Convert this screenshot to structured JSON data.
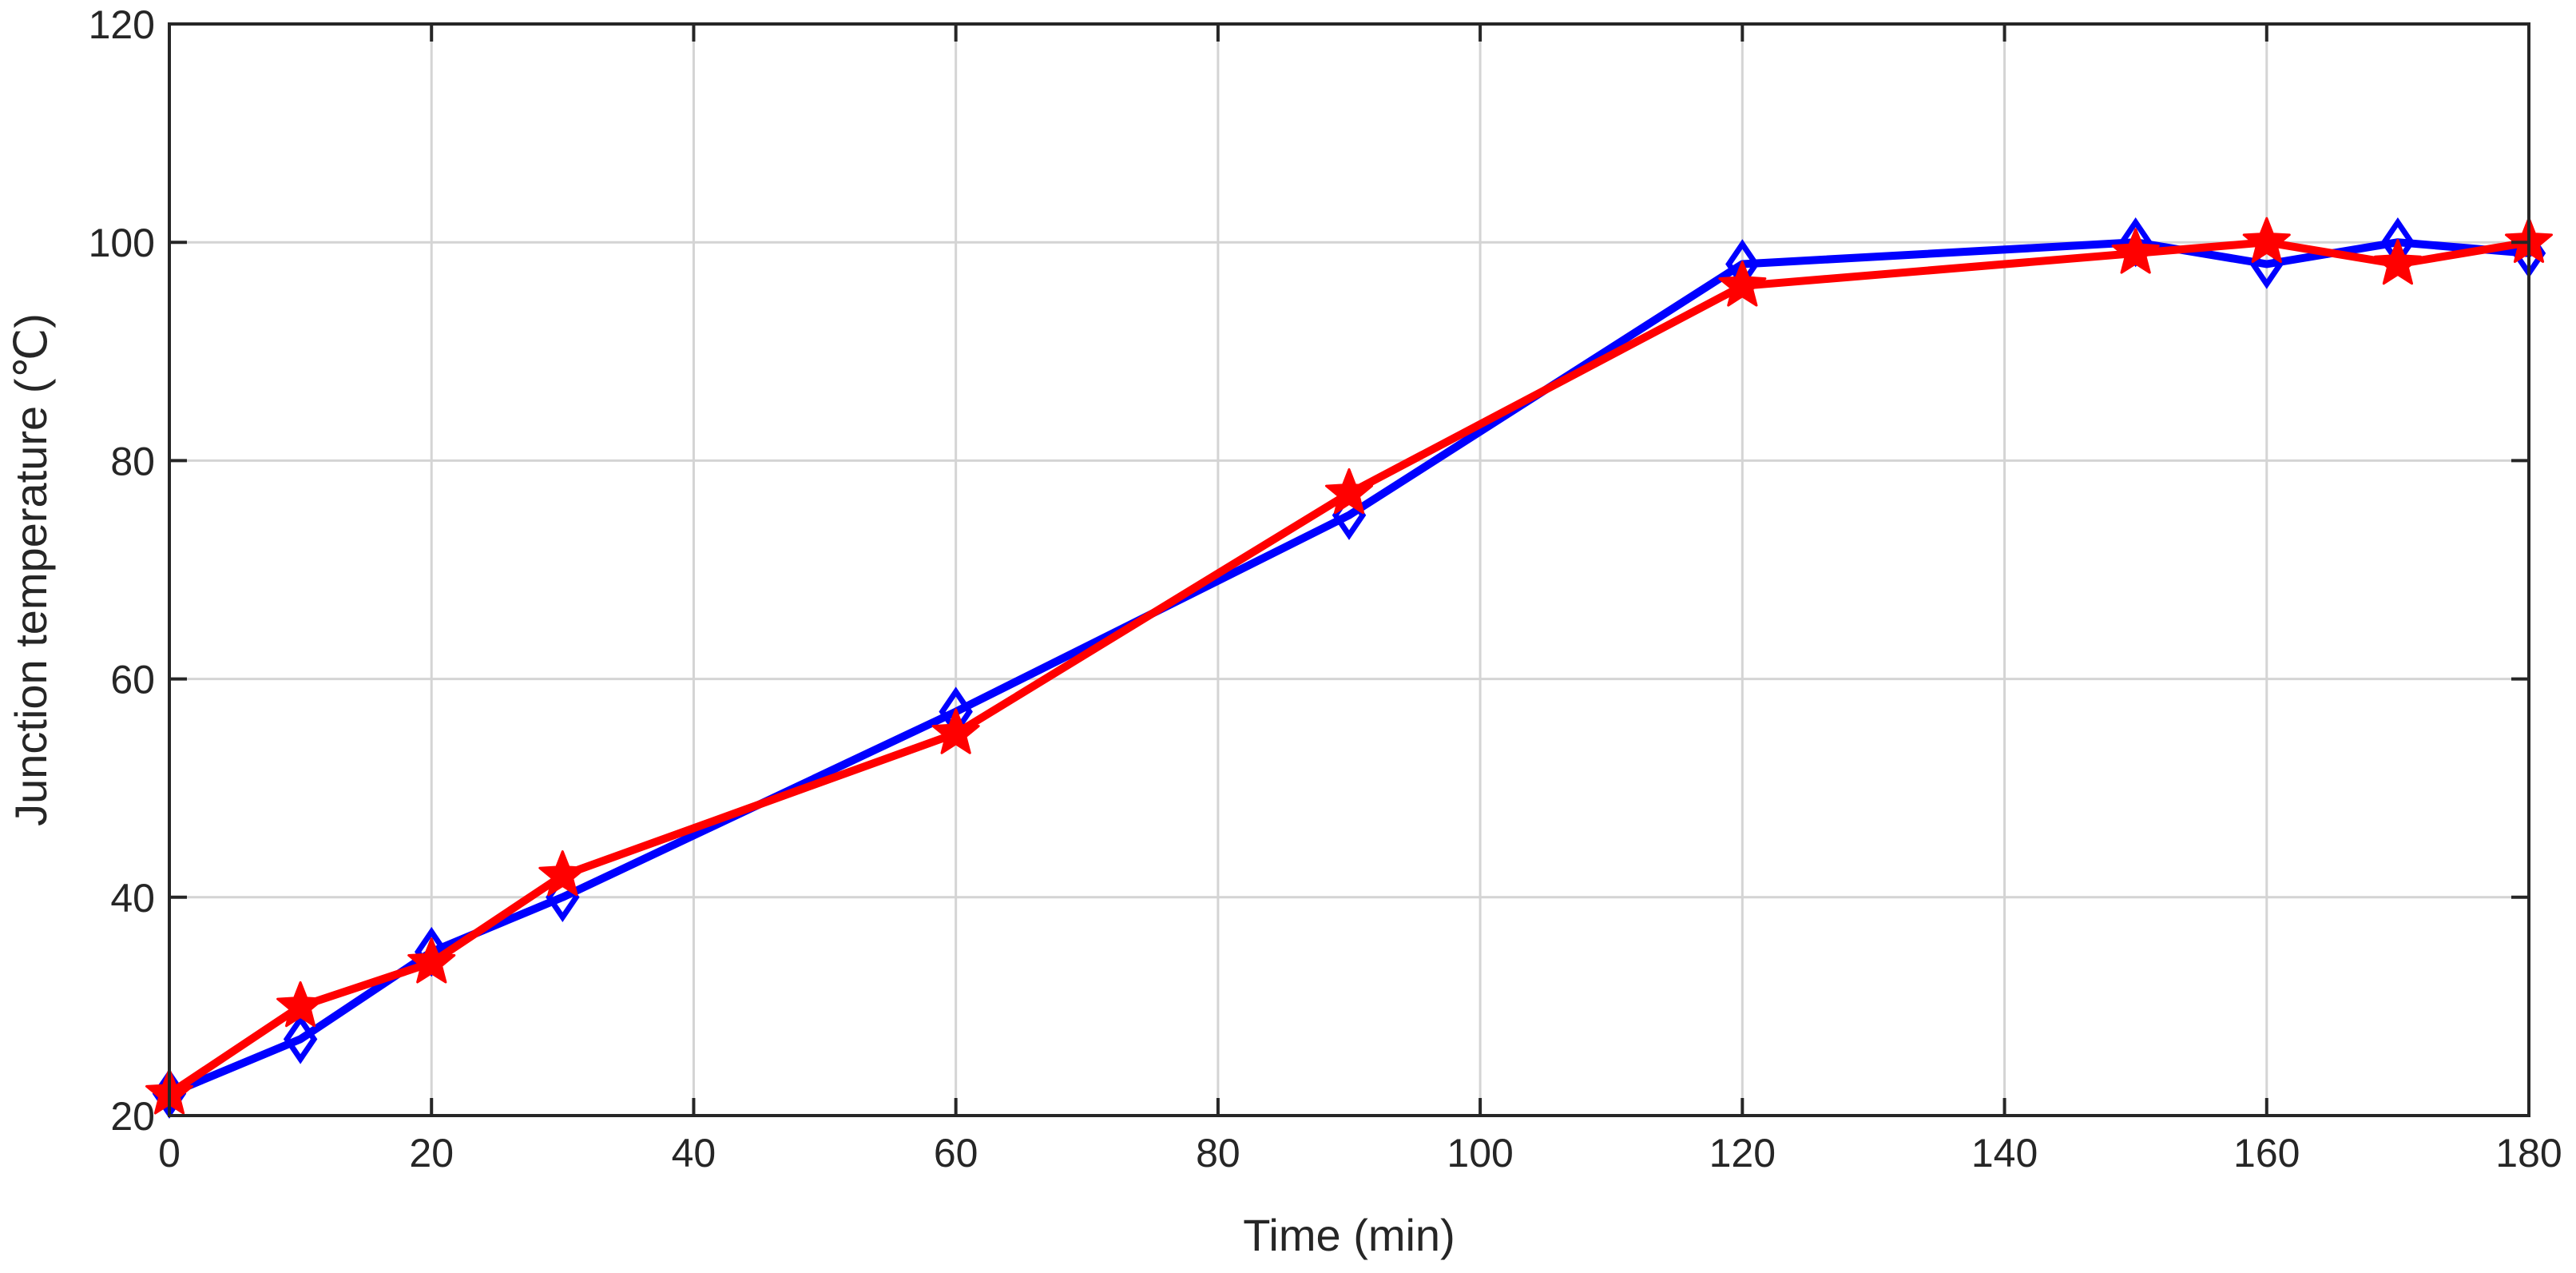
{
  "chart_data": {
    "type": "line",
    "title": "",
    "xlabel": "Time (min)",
    "ylabel": "Junction temperature (℃)",
    "xlim": [
      0,
      180
    ],
    "ylim": [
      20,
      120
    ],
    "xticks": [
      0,
      20,
      40,
      60,
      80,
      100,
      120,
      140,
      160,
      180
    ],
    "yticks": [
      20,
      40,
      60,
      80,
      100,
      120
    ],
    "grid": true,
    "legend": "none",
    "series": [
      {
        "color": "#0000ff",
        "marker": "diamond",
        "x": [
          0,
          10,
          20,
          30,
          60,
          90,
          120,
          150,
          160,
          170,
          180
        ],
        "y": [
          22,
          27,
          35,
          40,
          57,
          75,
          98,
          100,
          98,
          100,
          99
        ]
      },
      {
        "color": "#ff0000",
        "marker": "star",
        "x": [
          0,
          10,
          20,
          30,
          60,
          90,
          120,
          150,
          160,
          170,
          180
        ],
        "y": [
          22,
          30,
          34,
          42,
          55,
          77,
          96,
          99,
          100,
          98,
          100
        ]
      }
    ]
  }
}
